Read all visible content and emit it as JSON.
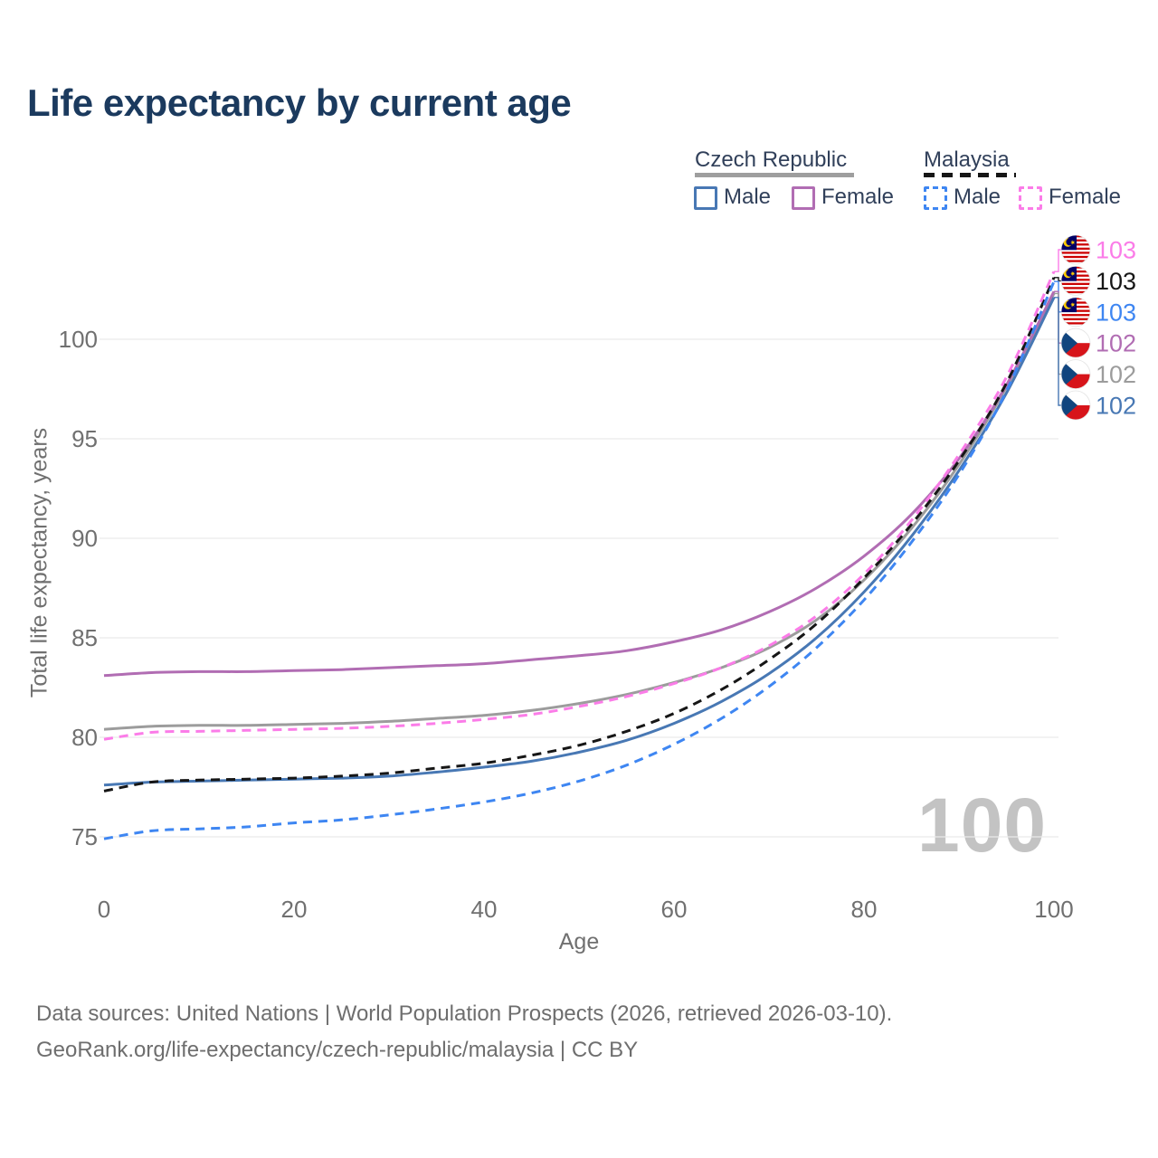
{
  "title": "Life expectancy by current age",
  "watermark": "100",
  "legend": {
    "groups": [
      {
        "name": "Czech Republic",
        "underline_style": "solid",
        "underline_color": "#9e9e9e",
        "items": [
          {
            "label": "Male",
            "color": "#4878b4",
            "dash": false
          },
          {
            "label": "Female",
            "color": "#b16db3",
            "dash": false
          }
        ]
      },
      {
        "name": "Malaysia",
        "underline_style": "dashed",
        "underline_color": "#161616",
        "items": [
          {
            "label": "Male",
            "color": "#3e86f2",
            "dash": true
          },
          {
            "label": "Female",
            "color": "#fb7ce8",
            "dash": true
          }
        ]
      }
    ]
  },
  "chart_data": {
    "type": "line",
    "title": "Life expectancy by current age",
    "xlabel": "Age",
    "ylabel": "Total life expectancy, years",
    "x_ticks": [
      0,
      20,
      40,
      60,
      80,
      100
    ],
    "y_ticks": [
      75,
      80,
      85,
      90,
      95,
      100
    ],
    "xlim": [
      0,
      100
    ],
    "ylim": [
      73.5,
      104.5
    ],
    "grid": "horizontal",
    "legend_position": "top-right",
    "x": [
      0,
      5,
      10,
      15,
      20,
      25,
      30,
      35,
      40,
      45,
      50,
      55,
      60,
      65,
      70,
      75,
      80,
      85,
      90,
      95,
      100
    ],
    "series": [
      {
        "id": "czech-republic-total",
        "name": "Czech Republic",
        "country": "Czech Republic",
        "sex": "Both",
        "flag": "cz",
        "color": "#9c9c9c",
        "line": "solid",
        "end_label": "102",
        "values": [
          80.4,
          80.55,
          80.6,
          80.6,
          80.65,
          80.7,
          80.8,
          80.95,
          81.1,
          81.35,
          81.7,
          82.15,
          82.75,
          83.5,
          84.5,
          85.9,
          87.9,
          90.5,
          93.7,
          97.6,
          102.3
        ]
      },
      {
        "id": "czech-republic-female",
        "name": "Czech Republic Female",
        "country": "Czech Republic",
        "sex": "Female",
        "flag": "cz",
        "color": "#b16db3",
        "line": "solid",
        "end_label": "102",
        "values": [
          83.1,
          83.25,
          83.3,
          83.3,
          83.35,
          83.4,
          83.5,
          83.6,
          83.7,
          83.9,
          84.1,
          84.35,
          84.8,
          85.4,
          86.3,
          87.5,
          89.1,
          91.2,
          94.0,
          97.7,
          102.4
        ]
      },
      {
        "id": "czech-republic-male",
        "name": "Czech Republic Male",
        "country": "Czech Republic",
        "sex": "Male",
        "flag": "cz",
        "color": "#4878b4",
        "line": "solid",
        "end_label": "102",
        "values": [
          77.6,
          77.75,
          77.8,
          77.85,
          77.9,
          77.95,
          78.05,
          78.25,
          78.5,
          78.8,
          79.25,
          79.85,
          80.7,
          81.8,
          83.2,
          85.0,
          87.3,
          90.1,
          93.4,
          97.3,
          102.1
        ]
      },
      {
        "id": "malaysia-total",
        "name": "Malaysia",
        "country": "Malaysia",
        "sex": "Both",
        "flag": "my",
        "color": "#161616",
        "line": "dashed",
        "end_label": "103",
        "values": [
          77.3,
          77.75,
          77.85,
          77.9,
          77.95,
          78.05,
          78.2,
          78.45,
          78.7,
          79.1,
          79.6,
          80.3,
          81.2,
          82.4,
          83.9,
          85.7,
          88.0,
          90.7,
          93.9,
          97.8,
          103.1
        ]
      },
      {
        "id": "malaysia-female",
        "name": "Malaysia Female",
        "country": "Malaysia",
        "sex": "Female",
        "flag": "my",
        "color": "#fb7ce8",
        "line": "dashed",
        "end_label": "103",
        "values": [
          79.9,
          80.25,
          80.3,
          80.35,
          80.4,
          80.45,
          80.55,
          80.7,
          80.9,
          81.15,
          81.55,
          82.05,
          82.7,
          83.5,
          84.6,
          86.1,
          88.2,
          90.9,
          94.2,
          98.1,
          103.4
        ]
      },
      {
        "id": "malaysia-male",
        "name": "Malaysia Male",
        "country": "Malaysia",
        "sex": "Male",
        "flag": "my",
        "color": "#3e86f2",
        "line": "dashed",
        "end_label": "103",
        "values": [
          74.9,
          75.3,
          75.4,
          75.5,
          75.7,
          75.85,
          76.1,
          76.4,
          76.75,
          77.2,
          77.8,
          78.6,
          79.65,
          80.95,
          82.55,
          84.5,
          86.9,
          89.8,
          93.2,
          97.4,
          102.9
        ]
      }
    ]
  },
  "footer": {
    "line1": "Data sources: United Nations | World Population Prospects (2026, retrieved 2026-03-10).",
    "line2": "GeoRank.org/life-expectancy/czech-republic/malaysia | CC BY"
  }
}
